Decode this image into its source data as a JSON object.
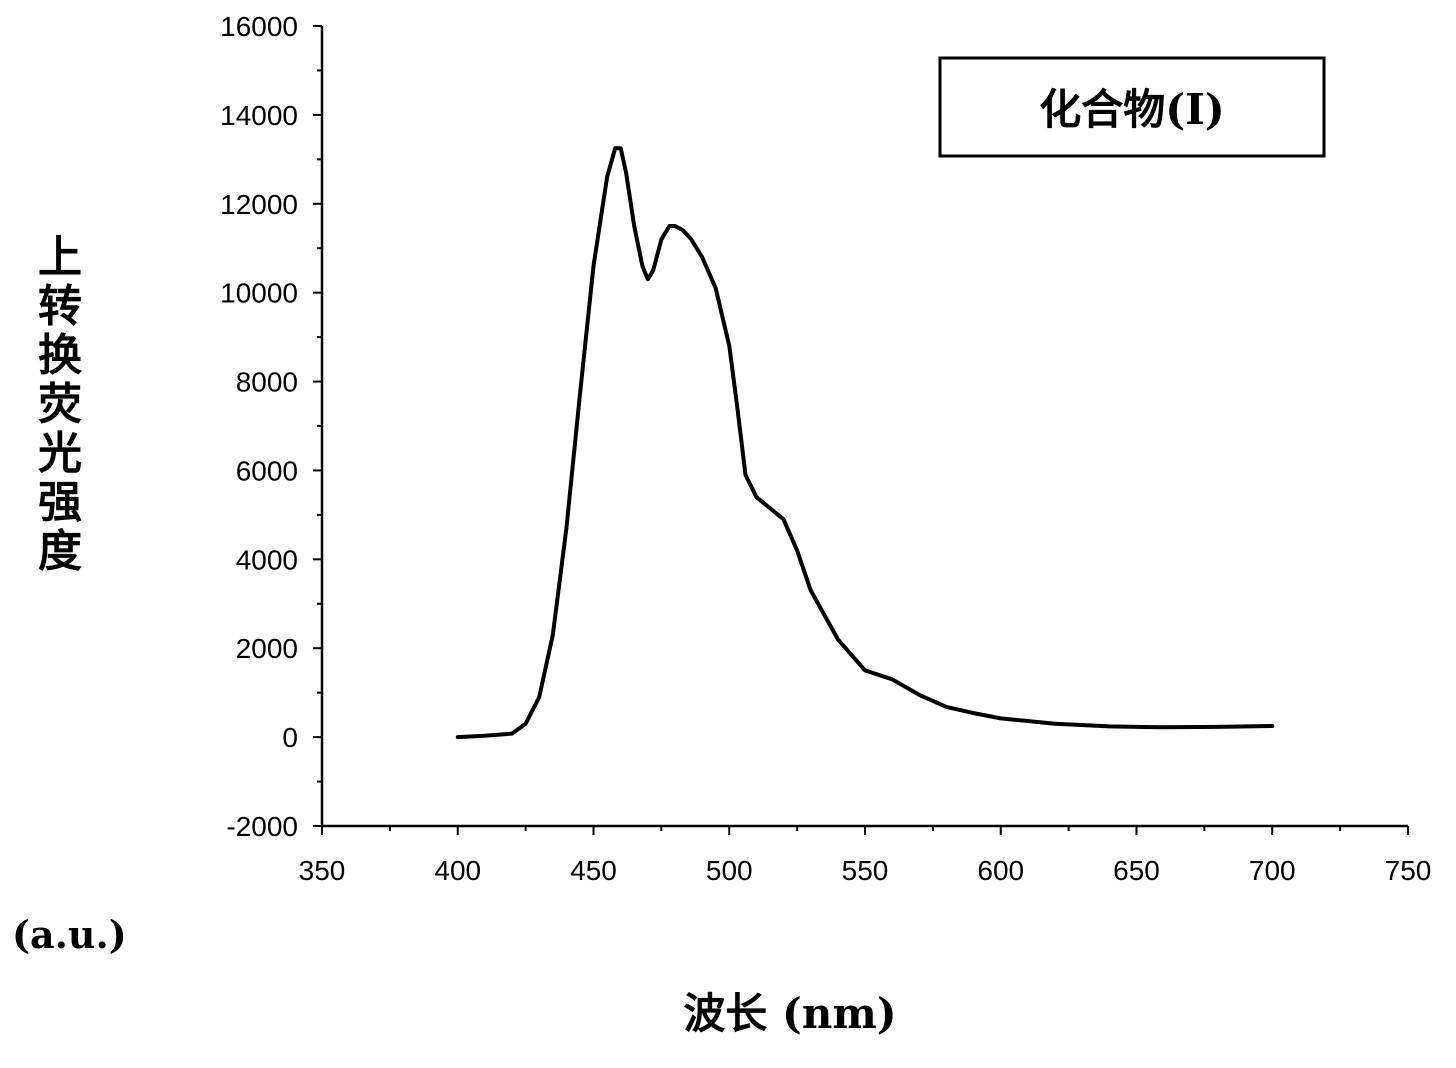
{
  "chart_data": {
    "type": "line",
    "legend_label": "化合物(Ⅰ)",
    "legend_position": "top-right",
    "ylabel": "上转换荧光强度",
    "yunit": "(a.u.)",
    "xlabel": "波长 (nm)",
    "xlim": [
      350,
      750
    ],
    "ylim": [
      -2000,
      16000
    ],
    "xticks": [
      350,
      400,
      450,
      500,
      550,
      600,
      650,
      700,
      750
    ],
    "yticks": [
      -2000,
      0,
      2000,
      4000,
      6000,
      8000,
      10000,
      12000,
      14000,
      16000
    ],
    "grid": false,
    "line_color": "#000000",
    "x": [
      400,
      410,
      420,
      425,
      430,
      435,
      440,
      445,
      450,
      455,
      458,
      460,
      462,
      465,
      468,
      470,
      472,
      475,
      478,
      480,
      483,
      486,
      490,
      495,
      500,
      503,
      506,
      510,
      515,
      520,
      525,
      530,
      540,
      550,
      560,
      570,
      580,
      590,
      600,
      620,
      640,
      660,
      680,
      700
    ],
    "y": [
      0,
      30,
      80,
      300,
      900,
      2300,
      4700,
      7700,
      10600,
      12600,
      13250,
      13250,
      12700,
      11500,
      10600,
      10300,
      10500,
      11200,
      11500,
      11500,
      11400,
      11200,
      10800,
      10100,
      8800,
      7400,
      5900,
      5400,
      5150,
      4900,
      4200,
      3300,
      2200,
      1500,
      1300,
      950,
      680,
      540,
      420,
      300,
      240,
      220,
      230,
      250
    ]
  }
}
